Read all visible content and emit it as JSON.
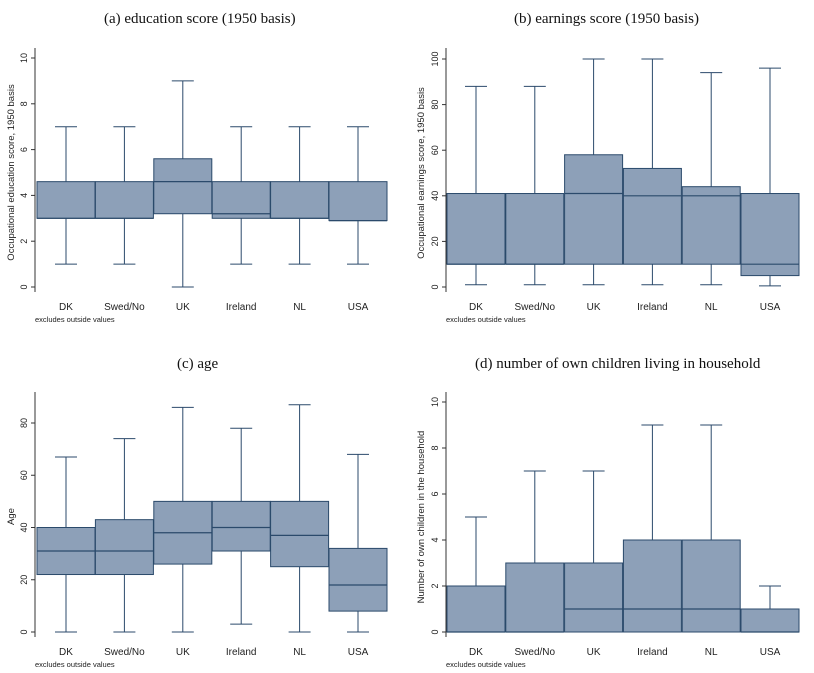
{
  "chart_data": [
    {
      "type": "box",
      "title": "(a) education score (1950 basis)",
      "ylabel": "Occupational education score, 1950 basis",
      "ylim": [
        0,
        10
      ],
      "yticks": [
        0,
        2,
        4,
        6,
        8,
        10
      ],
      "note": "excludes outside values",
      "categories": [
        "DK",
        "Swed/No",
        "UK",
        "Ireland",
        "NL",
        "USA"
      ],
      "boxes": [
        {
          "min": 1,
          "q1": 3,
          "median": 3,
          "q3": 4.6,
          "max": 7
        },
        {
          "min": 1,
          "q1": 3,
          "median": 3,
          "q3": 4.6,
          "max": 7
        },
        {
          "min": 0,
          "q1": 3.2,
          "median": 4.6,
          "q3": 5.6,
          "max": 9
        },
        {
          "min": 1,
          "q1": 3,
          "median": 3.2,
          "q3": 4.6,
          "max": 7
        },
        {
          "min": 1,
          "q1": 3,
          "median": 3,
          "q3": 4.6,
          "max": 7
        },
        {
          "min": 1,
          "q1": 2.9,
          "median": 2.9,
          "q3": 4.6,
          "max": 7
        }
      ]
    },
    {
      "type": "box",
      "title": "(b) earnings score (1950 basis)",
      "ylabel": "Occupational earnings score, 1950 basis",
      "ylim": [
        0,
        100
      ],
      "yticks": [
        0,
        20,
        40,
        60,
        80,
        100
      ],
      "note": "excludes outside values",
      "categories": [
        "DK",
        "Swed/No",
        "UK",
        "Ireland",
        "NL",
        "USA"
      ],
      "boxes": [
        {
          "min": 1,
          "q1": 10,
          "median": 10,
          "q3": 41,
          "max": 88
        },
        {
          "min": 1,
          "q1": 10,
          "median": 10,
          "q3": 41,
          "max": 88
        },
        {
          "min": 1,
          "q1": 10,
          "median": 41,
          "q3": 58,
          "max": 100
        },
        {
          "min": 1,
          "q1": 10,
          "median": 40,
          "q3": 52,
          "max": 100
        },
        {
          "min": 1,
          "q1": 10,
          "median": 40,
          "q3": 44,
          "max": 94
        },
        {
          "min": 0.5,
          "q1": 5,
          "median": 10,
          "q3": 41,
          "max": 96
        }
      ]
    },
    {
      "type": "box",
      "title": "(c) age",
      "ylabel": "Age",
      "ylim": [
        0,
        90
      ],
      "yticks": [
        0,
        20,
        40,
        60,
        80
      ],
      "note": "excludes outside values",
      "categories": [
        "DK",
        "Swed/No",
        "UK",
        "Ireland",
        "NL",
        "USA"
      ],
      "boxes": [
        {
          "min": 0,
          "q1": 22,
          "median": 31,
          "q3": 40,
          "max": 67
        },
        {
          "min": 0,
          "q1": 22,
          "median": 31,
          "q3": 43,
          "max": 74
        },
        {
          "min": 0,
          "q1": 26,
          "median": 38,
          "q3": 50,
          "max": 86
        },
        {
          "min": 3,
          "q1": 31,
          "median": 40,
          "q3": 50,
          "max": 78
        },
        {
          "min": 0,
          "q1": 25,
          "median": 37,
          "q3": 50,
          "max": 87
        },
        {
          "min": 0,
          "q1": 8,
          "median": 18,
          "q3": 32,
          "max": 68
        }
      ]
    },
    {
      "type": "box",
      "title": "(d) number of own children living in household",
      "ylabel": "Number of own children in the household",
      "ylim": [
        0,
        10
      ],
      "yticks": [
        0,
        2,
        4,
        6,
        8,
        10
      ],
      "note": "excludes outside values",
      "categories": [
        "DK",
        "Swed/No",
        "UK",
        "Ireland",
        "NL",
        "USA"
      ],
      "boxes": [
        {
          "min": 0,
          "q1": 0,
          "median": 0,
          "q3": 2,
          "max": 5
        },
        {
          "min": 0,
          "q1": 0,
          "median": 0,
          "q3": 3,
          "max": 7
        },
        {
          "min": 0,
          "q1": 0,
          "median": 1,
          "q3": 3,
          "max": 7
        },
        {
          "min": 0,
          "q1": 0,
          "median": 1,
          "q3": 4,
          "max": 9
        },
        {
          "min": 0,
          "q1": 0,
          "median": 1,
          "q3": 4,
          "max": 9
        },
        {
          "min": 0,
          "q1": 0,
          "median": 0,
          "q3": 1,
          "max": 2
        }
      ]
    }
  ],
  "colors": {
    "box_fill": "#8da0b8",
    "box_stroke": "#2b4a6b",
    "axis": "#333333"
  }
}
